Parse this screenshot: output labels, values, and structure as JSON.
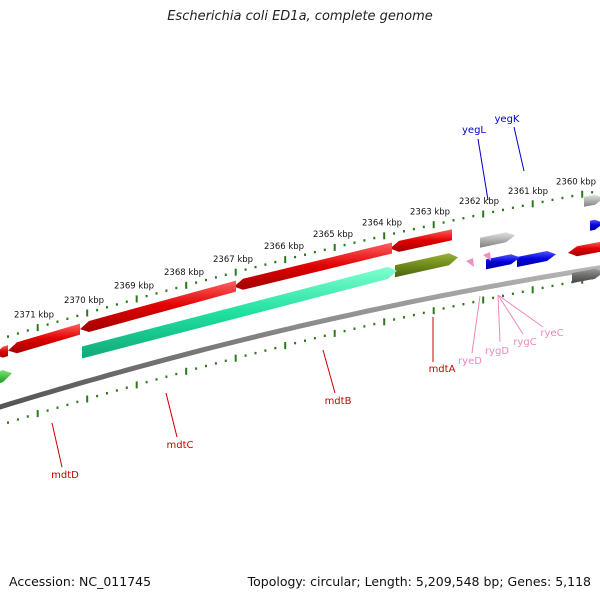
{
  "title": "Escherichia coli ED1a, complete genome",
  "footer": {
    "accession": "Accession: NC_011745",
    "summary": "Topology: circular; Length: 5,209,548 bp; Genes: 5,118"
  },
  "ruler_labels": [
    "2360 kbp",
    "2361 kbp",
    "2362 kbp",
    "2363 kbp",
    "2364 kbp",
    "2365 kbp",
    "2366 kbp",
    "2367 kbp",
    "2368 kbp",
    "2369 kbp",
    "2370 kbp",
    "2371 kbp"
  ],
  "gene_labels": {
    "yegL": "yegL",
    "yegK": "yegK",
    "mdtA": "mdtA",
    "mdtB": "mdtB",
    "mdtC": "mdtC",
    "mdtD": "mdtD",
    "ryeD": "ryeD",
    "rygD": "rygD",
    "rygC": "rygC",
    "ryeC": "ryeC"
  },
  "colors": {
    "backbone": "#808080",
    "ruler_dots": "#2a7a1a",
    "cds_red": "#e00000",
    "cds_blue": "#0000dd",
    "cds_grey": "#b0b0b0",
    "cds_dark_grey": "#6a6a6a",
    "cds_olive": "#6e8a1a",
    "cds_aqua": "#20e0a0",
    "cds_green": "#40c040",
    "rna_pink": "#f090c0",
    "label_red": "#cc0000",
    "label_blue": "#0000cc",
    "label_pink": "#ee88bb"
  }
}
